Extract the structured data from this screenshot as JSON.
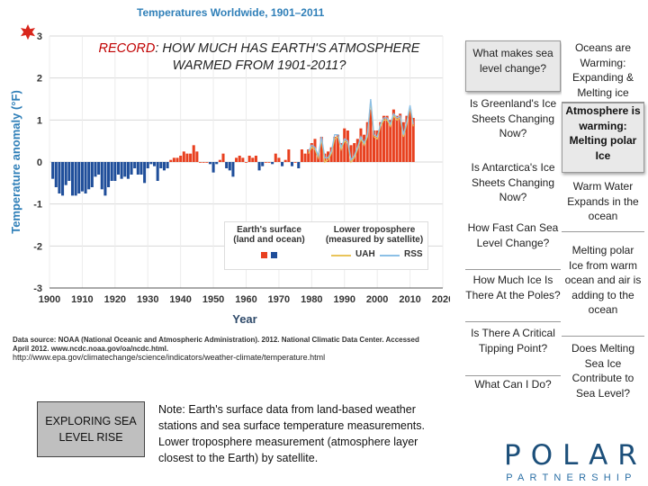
{
  "slide": {
    "record_prefix": "RECORD",
    "record_title_rest": ": HOW MUCH HAS EARTH'S ATMOSPHERE WARMED FROM 1901-2011?",
    "source_text": "Data source: NOAA (National Oceanic and Atmospheric Administration). 2012. National Climatic Data Center. Accessed April 2012. www.ncdc.noaa.gov/oa/ncdc.html.",
    "url": "http://www.epa.gov/climatechange/science/indicators/weather-climate/temperature.html",
    "explore_button": "EXPLORING SEA LEVEL RISE",
    "note": "Note: Earth's surface data from land-based weather stations and sea surface temperature measurements. Lower troposphere measurement (atmosphere layer closest to the Earth) by satellite.",
    "questions": [
      "What makes sea level change?",
      "Is Greenland's Ice Sheets Changing Now?",
      "Is Antarctica's Ice Sheets Changing Now?",
      "How Fast Can Sea Level Change?",
      "How Much Ice Is There At the Poles?",
      "Is There A Critical Tipping Point?",
      "What Can I Do?"
    ],
    "answers": [
      "Oceans are Warming: Expanding & Melting ice",
      "Atmosphere is warming: Melting polar Ice",
      "Warm Water Expands in the ocean",
      "Melting polar Ice from warm ocean and air is adding to the ocean",
      "Does Melting Sea Ice Contribute to Sea Level?"
    ],
    "logo_main": "POLAR",
    "logo_sub": "PARTNERSHIP",
    "colors": {
      "surface_pos": "#e8401f",
      "surface_neg": "#1f4e9a",
      "uah": "#e9c45a",
      "rss": "#8cc0e6",
      "title": "#2f7fb8"
    }
  },
  "chart_data": {
    "type": "bar",
    "title": "Temperatures Worldwide, 1901–2011",
    "xlabel": "Year",
    "ylabel": "Temperature anomaly (°F)",
    "xlim": [
      1900,
      2020
    ],
    "ylim": [
      -3,
      3
    ],
    "xticks": [
      1900,
      1910,
      1920,
      1930,
      1940,
      1950,
      1960,
      1970,
      1980,
      1990,
      2000,
      2010,
      2020
    ],
    "yticks": [
      -3,
      -2,
      -1,
      0,
      1,
      2,
      3
    ],
    "legend": {
      "surface_title": "Earth's surface (land and ocean)",
      "troposphere_title": "Lower troposphere (measured by satellite)",
      "uah": "UAH",
      "rss": "RSS"
    },
    "series": [
      {
        "name": "Earth's surface (land and ocean)",
        "x": [
          1901,
          1902,
          1903,
          1904,
          1905,
          1906,
          1907,
          1908,
          1909,
          1910,
          1911,
          1912,
          1913,
          1914,
          1915,
          1916,
          1917,
          1918,
          1919,
          1920,
          1921,
          1922,
          1923,
          1924,
          1925,
          1926,
          1927,
          1928,
          1929,
          1930,
          1931,
          1932,
          1933,
          1934,
          1935,
          1936,
          1937,
          1938,
          1939,
          1940,
          1941,
          1942,
          1943,
          1944,
          1945,
          1946,
          1947,
          1948,
          1949,
          1950,
          1951,
          1952,
          1953,
          1954,
          1955,
          1956,
          1957,
          1958,
          1959,
          1960,
          1961,
          1962,
          1963,
          1964,
          1965,
          1966,
          1967,
          1968,
          1969,
          1970,
          1971,
          1972,
          1973,
          1974,
          1975,
          1976,
          1977,
          1978,
          1979,
          1980,
          1981,
          1982,
          1983,
          1984,
          1985,
          1986,
          1987,
          1988,
          1989,
          1990,
          1991,
          1992,
          1993,
          1994,
          1995,
          1996,
          1997,
          1998,
          1999,
          2000,
          2001,
          2002,
          2003,
          2004,
          2005,
          2006,
          2007,
          2008,
          2009,
          2010,
          2011
        ],
        "values": [
          -0.4,
          -0.6,
          -0.75,
          -0.8,
          -0.55,
          -0.45,
          -0.8,
          -0.8,
          -0.75,
          -0.7,
          -0.75,
          -0.65,
          -0.6,
          -0.35,
          -0.3,
          -0.65,
          -0.8,
          -0.6,
          -0.45,
          -0.45,
          -0.3,
          -0.4,
          -0.35,
          -0.4,
          -0.3,
          -0.15,
          -0.3,
          -0.3,
          -0.5,
          -0.15,
          -0.05,
          -0.1,
          -0.45,
          -0.15,
          -0.2,
          -0.15,
          0.05,
          0.1,
          0.1,
          0.15,
          0.25,
          0.2,
          0.2,
          0.4,
          0.25,
          0.0,
          0.0,
          0.0,
          -0.05,
          -0.25,
          -0.05,
          0.05,
          0.2,
          -0.15,
          -0.2,
          -0.35,
          0.1,
          0.15,
          0.1,
          0.0,
          0.15,
          0.1,
          0.15,
          -0.2,
          -0.1,
          0.0,
          0.0,
          -0.05,
          0.2,
          0.1,
          -0.1,
          0.05,
          0.3,
          -0.1,
          0.0,
          -0.15,
          0.3,
          0.2,
          0.3,
          0.45,
          0.55,
          0.2,
          0.6,
          0.2,
          0.25,
          0.35,
          0.6,
          0.65,
          0.45,
          0.8,
          0.75,
          0.4,
          0.45,
          0.55,
          0.8,
          0.65,
          0.95,
          1.25,
          0.75,
          0.75,
          0.95,
          1.1,
          1.1,
          1.0,
          1.25,
          1.1,
          1.15,
          0.95,
          1.1,
          1.25,
          1.05
        ]
      },
      {
        "name": "UAH",
        "x": [
          1979,
          1980,
          1981,
          1982,
          1983,
          1984,
          1985,
          1986,
          1987,
          1988,
          1989,
          1990,
          1991,
          1992,
          1993,
          1994,
          1995,
          1996,
          1997,
          1998,
          1999,
          2000,
          2001,
          2002,
          2003,
          2004,
          2005,
          2006,
          2007,
          2008,
          2009,
          2010,
          2011
        ],
        "values": [
          0.2,
          0.35,
          0.3,
          0.1,
          0.55,
          0.0,
          0.05,
          0.2,
          0.55,
          0.6,
          0.3,
          0.5,
          0.45,
          0.0,
          0.1,
          0.3,
          0.55,
          0.4,
          0.6,
          1.45,
          0.6,
          0.55,
          0.85,
          1.0,
          1.0,
          0.85,
          1.1,
          1.0,
          1.05,
          0.6,
          0.9,
          1.3,
          0.85
        ]
      },
      {
        "name": "RSS",
        "x": [
          1979,
          1980,
          1981,
          1982,
          1983,
          1984,
          1985,
          1986,
          1987,
          1988,
          1989,
          1990,
          1991,
          1992,
          1993,
          1994,
          1995,
          1996,
          1997,
          1998,
          1999,
          2000,
          2001,
          2002,
          2003,
          2004,
          2005,
          2006,
          2007,
          2008,
          2009,
          2010,
          2011
        ],
        "values": [
          0.25,
          0.4,
          0.35,
          0.15,
          0.6,
          0.1,
          0.1,
          0.25,
          0.65,
          0.65,
          0.35,
          0.55,
          0.5,
          0.05,
          0.15,
          0.35,
          0.6,
          0.45,
          0.65,
          1.5,
          0.65,
          0.6,
          0.9,
          1.05,
          1.05,
          0.9,
          1.15,
          1.05,
          1.1,
          0.65,
          0.95,
          1.35,
          0.9
        ]
      }
    ]
  }
}
